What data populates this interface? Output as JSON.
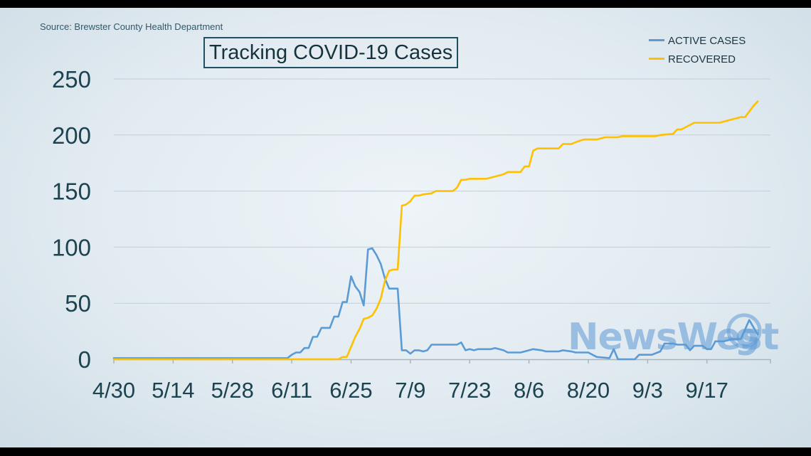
{
  "source": "Source: Brewster County Health Department",
  "colors": {
    "active": "#5b9bd5",
    "recovered": "#ffc000",
    "axis_text": "#1c4350",
    "grid": "#c3ced6",
    "logo": "#5e9ad5"
  },
  "logo": {
    "text": "NewsWest",
    "number": "9"
  },
  "chart_data": {
    "type": "line",
    "title": "Tracking COVID-19 Cases",
    "xlabel": "",
    "ylabel": "",
    "ylim": [
      0,
      250
    ],
    "yticks": [
      0,
      50,
      100,
      150,
      200,
      250
    ],
    "xlim": [
      "2020-04-30",
      "2020-10-02"
    ],
    "xticks": [
      {
        "date": "2020-04-30",
        "label": "4/30"
      },
      {
        "date": "2020-05-14",
        "label": "5/14"
      },
      {
        "date": "2020-05-28",
        "label": "5/28"
      },
      {
        "date": "2020-06-11",
        "label": "6/11"
      },
      {
        "date": "2020-06-25",
        "label": "6/25"
      },
      {
        "date": "2020-07-09",
        "label": "7/9"
      },
      {
        "date": "2020-07-23",
        "label": "7/23"
      },
      {
        "date": "2020-08-06",
        "label": "8/6"
      },
      {
        "date": "2020-08-20",
        "label": "8/20"
      },
      {
        "date": "2020-09-03",
        "label": "9/3"
      },
      {
        "date": "2020-09-17",
        "label": "9/17"
      }
    ],
    "grid": true,
    "legend": "top-right",
    "series": [
      {
        "name": "ACTIVE CASES",
        "color": "#5b9bd5",
        "points": [
          [
            "2020-04-30",
            1
          ],
          [
            "2020-06-10",
            1
          ],
          [
            "2020-06-11",
            4
          ],
          [
            "2020-06-12",
            6
          ],
          [
            "2020-06-13",
            6
          ],
          [
            "2020-06-14",
            10
          ],
          [
            "2020-06-15",
            10
          ],
          [
            "2020-06-16",
            20
          ],
          [
            "2020-06-17",
            20
          ],
          [
            "2020-06-18",
            28
          ],
          [
            "2020-06-20",
            28
          ],
          [
            "2020-06-21",
            38
          ],
          [
            "2020-06-22",
            38
          ],
          [
            "2020-06-23",
            51
          ],
          [
            "2020-06-24",
            51
          ],
          [
            "2020-06-25",
            74
          ],
          [
            "2020-06-26",
            65
          ],
          [
            "2020-06-27",
            60
          ],
          [
            "2020-06-28",
            48
          ],
          [
            "2020-06-29",
            98
          ],
          [
            "2020-06-30",
            99
          ],
          [
            "2020-07-01",
            93
          ],
          [
            "2020-07-02",
            85
          ],
          [
            "2020-07-03",
            72
          ],
          [
            "2020-07-04",
            63
          ],
          [
            "2020-07-05",
            63
          ],
          [
            "2020-07-06",
            63
          ],
          [
            "2020-07-07",
            8
          ],
          [
            "2020-07-08",
            8
          ],
          [
            "2020-07-09",
            5
          ],
          [
            "2020-07-10",
            8
          ],
          [
            "2020-07-11",
            8
          ],
          [
            "2020-07-12",
            7
          ],
          [
            "2020-07-13",
            8
          ],
          [
            "2020-07-14",
            13
          ],
          [
            "2020-07-16",
            13
          ],
          [
            "2020-07-20",
            13
          ],
          [
            "2020-07-21",
            15
          ],
          [
            "2020-07-22",
            8
          ],
          [
            "2020-07-23",
            9
          ],
          [
            "2020-07-24",
            8
          ],
          [
            "2020-07-25",
            9
          ],
          [
            "2020-07-28",
            9
          ],
          [
            "2020-07-29",
            10
          ],
          [
            "2020-07-31",
            8
          ],
          [
            "2020-08-01",
            6
          ],
          [
            "2020-08-04",
            6
          ],
          [
            "2020-08-05",
            7
          ],
          [
            "2020-08-07",
            9
          ],
          [
            "2020-08-09",
            8
          ],
          [
            "2020-08-10",
            7
          ],
          [
            "2020-08-13",
            7
          ],
          [
            "2020-08-14",
            8
          ],
          [
            "2020-08-16",
            7
          ],
          [
            "2020-08-17",
            6
          ],
          [
            "2020-08-20",
            6
          ],
          [
            "2020-08-21",
            4
          ],
          [
            "2020-08-22",
            2
          ],
          [
            "2020-08-25",
            1
          ],
          [
            "2020-08-26",
            9
          ],
          [
            "2020-08-27",
            0
          ],
          [
            "2020-08-31",
            0
          ],
          [
            "2020-09-01",
            4
          ],
          [
            "2020-09-04",
            4
          ],
          [
            "2020-09-06",
            7
          ],
          [
            "2020-09-07",
            14
          ],
          [
            "2020-09-09",
            14
          ],
          [
            "2020-09-10",
            13
          ],
          [
            "2020-09-12",
            13
          ],
          [
            "2020-09-13",
            8
          ],
          [
            "2020-09-14",
            12
          ],
          [
            "2020-09-16",
            12
          ],
          [
            "2020-09-17",
            9
          ],
          [
            "2020-09-18",
            9
          ],
          [
            "2020-09-19",
            16
          ],
          [
            "2020-09-21",
            16
          ],
          [
            "2020-09-22",
            17
          ],
          [
            "2020-09-23",
            18
          ],
          [
            "2020-09-25",
            18
          ],
          [
            "2020-09-27",
            35
          ],
          [
            "2020-09-29",
            22
          ]
        ]
      },
      {
        "name": "RECOVERED",
        "color": "#ffc000",
        "points": [
          [
            "2020-04-30",
            0
          ],
          [
            "2020-06-22",
            0
          ],
          [
            "2020-06-23",
            2
          ],
          [
            "2020-06-24",
            2
          ],
          [
            "2020-06-26",
            20
          ],
          [
            "2020-06-27",
            27
          ],
          [
            "2020-06-28",
            36
          ],
          [
            "2020-06-29",
            37
          ],
          [
            "2020-06-30",
            39
          ],
          [
            "2020-07-01",
            45
          ],
          [
            "2020-07-02",
            54
          ],
          [
            "2020-07-03",
            70
          ],
          [
            "2020-07-04",
            79
          ],
          [
            "2020-07-05",
            80
          ],
          [
            "2020-07-06",
            80
          ],
          [
            "2020-07-07",
            137
          ],
          [
            "2020-07-08",
            138
          ],
          [
            "2020-07-09",
            141
          ],
          [
            "2020-07-10",
            146
          ],
          [
            "2020-07-11",
            146
          ],
          [
            "2020-07-12",
            147
          ],
          [
            "2020-07-14",
            148
          ],
          [
            "2020-07-15",
            150
          ],
          [
            "2020-07-19",
            150
          ],
          [
            "2020-07-20",
            153
          ],
          [
            "2020-07-21",
            160
          ],
          [
            "2020-07-22",
            160
          ],
          [
            "2020-07-23",
            161
          ],
          [
            "2020-07-27",
            161
          ],
          [
            "2020-07-31",
            165
          ],
          [
            "2020-08-01",
            167
          ],
          [
            "2020-08-04",
            167
          ],
          [
            "2020-08-05",
            172
          ],
          [
            "2020-08-06",
            172
          ],
          [
            "2020-08-07",
            186
          ],
          [
            "2020-08-08",
            188
          ],
          [
            "2020-08-13",
            188
          ],
          [
            "2020-08-14",
            192
          ],
          [
            "2020-08-16",
            192
          ],
          [
            "2020-08-18",
            195
          ],
          [
            "2020-08-19",
            196
          ],
          [
            "2020-08-22",
            196
          ],
          [
            "2020-08-23",
            197
          ],
          [
            "2020-08-24",
            198
          ],
          [
            "2020-08-27",
            198
          ],
          [
            "2020-08-28",
            199
          ],
          [
            "2020-09-05",
            199
          ],
          [
            "2020-09-06",
            200
          ],
          [
            "2020-09-09",
            201
          ],
          [
            "2020-09-10",
            205
          ],
          [
            "2020-09-11",
            205
          ],
          [
            "2020-09-13",
            209
          ],
          [
            "2020-09-14",
            211
          ],
          [
            "2020-09-20",
            211
          ],
          [
            "2020-09-22",
            213
          ],
          [
            "2020-09-24",
            215
          ],
          [
            "2020-09-25",
            216
          ],
          [
            "2020-09-26",
            216
          ],
          [
            "2020-09-28",
            226
          ],
          [
            "2020-09-29",
            230
          ]
        ]
      }
    ]
  }
}
